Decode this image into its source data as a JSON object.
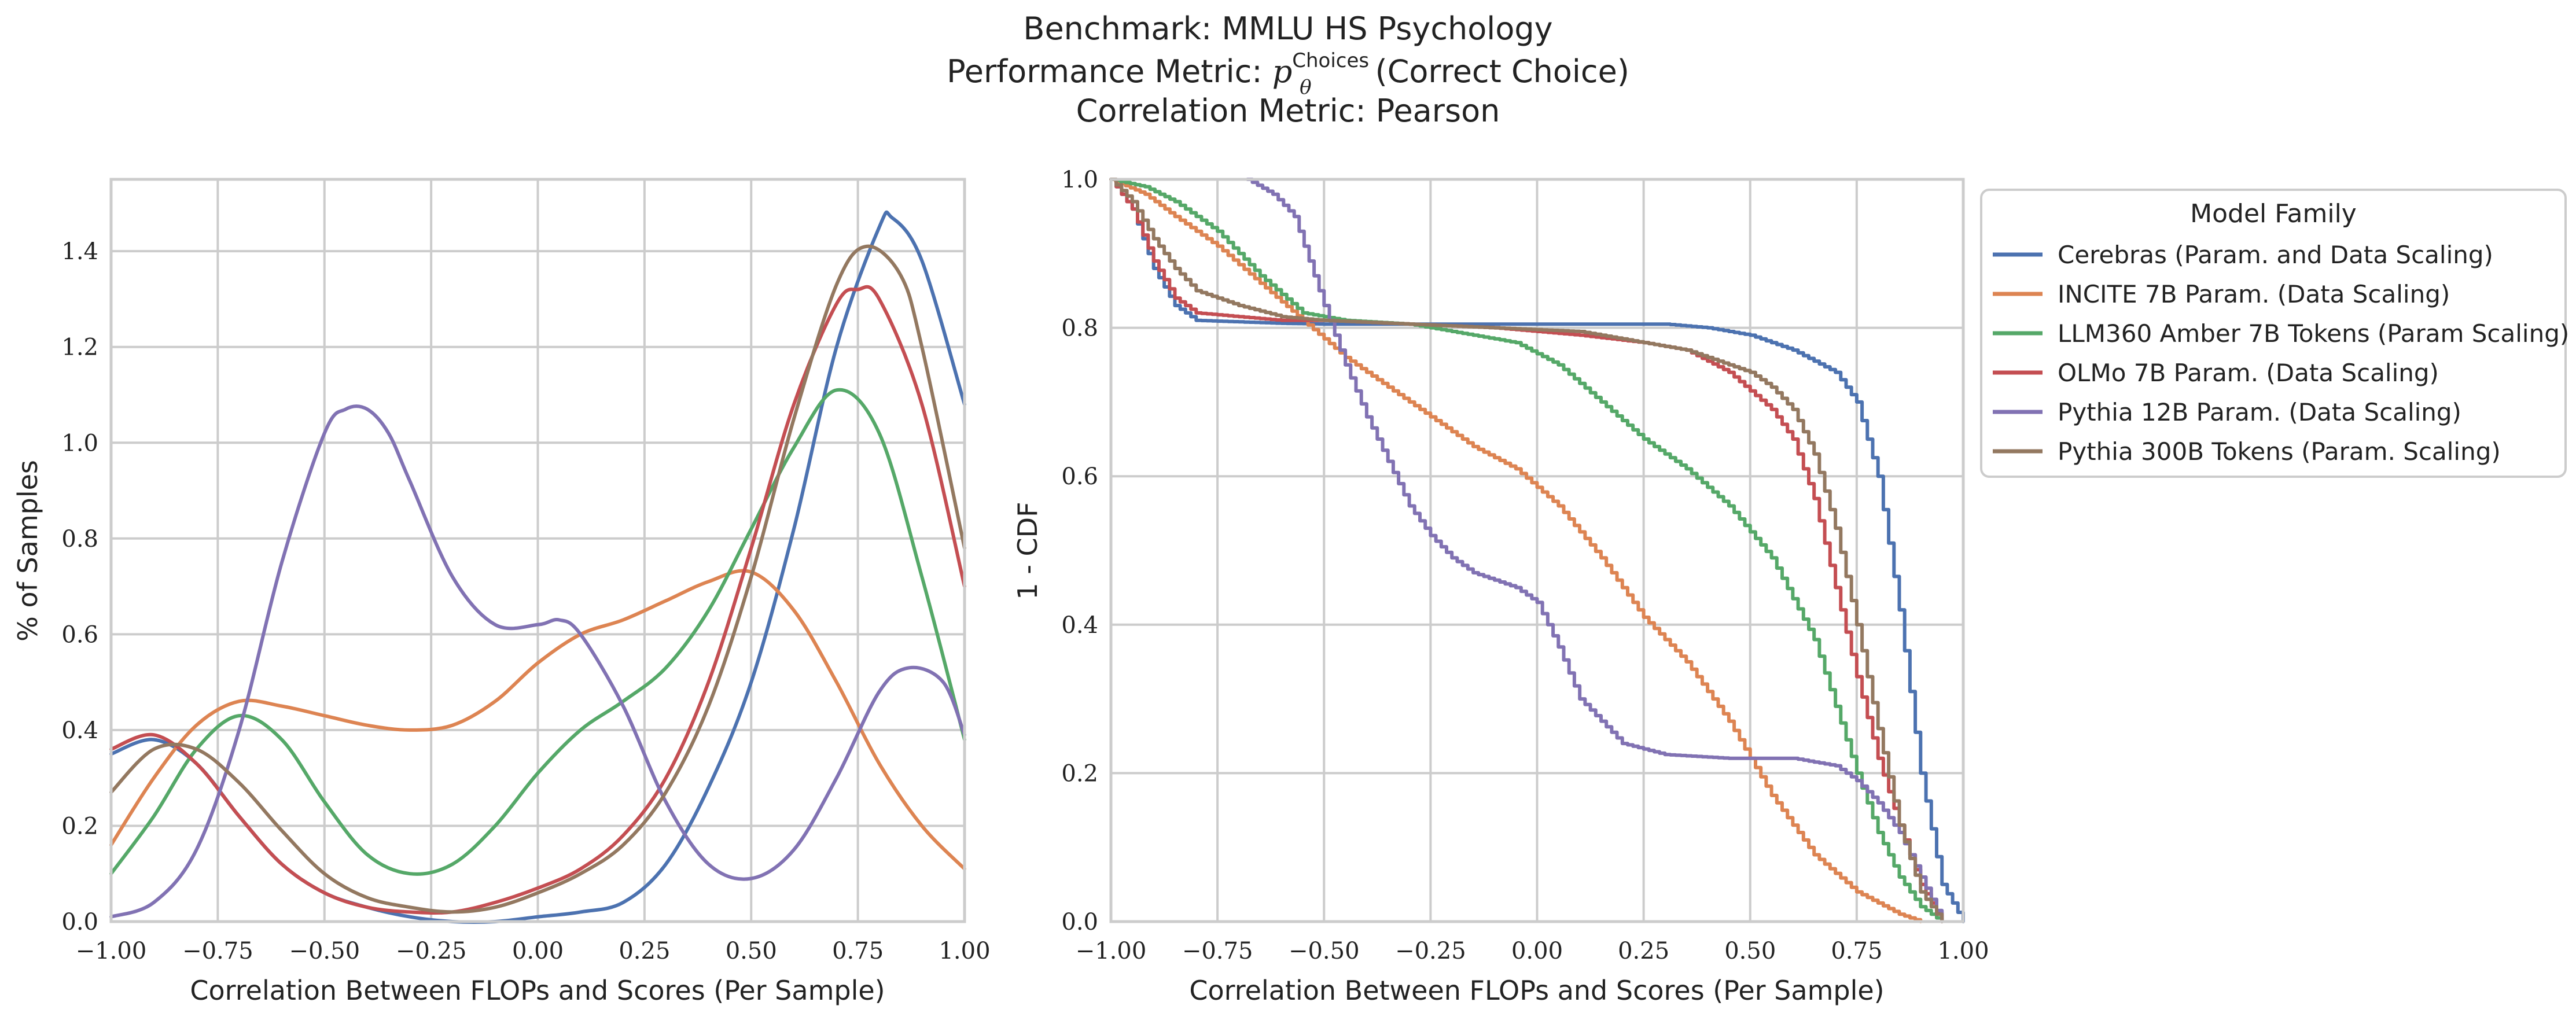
{
  "title": {
    "line1": "Benchmark: MMLU HS Psychology",
    "line2_prefix": "Performance Metric: ",
    "line2_symbol": "p",
    "line2_sup": "Choices",
    "line2_sub": "θ",
    "line2_suffix": "(Correct Choice)",
    "line3": "Correlation Metric: Pearson"
  },
  "colors": {
    "Cerebras": "#4C72B0",
    "INCITE": "#DD8452",
    "LLM360": "#55A868",
    "OLMo": "#C44E52",
    "Pythia12B": "#8172B3",
    "Pythia300B": "#937860"
  },
  "chart_data": [
    {
      "type": "line",
      "id": "kde",
      "xlabel": "Correlation Between FLOPs and Scores (Per Sample)",
      "ylabel": "% of Samples",
      "xlim": [
        -1.0,
        1.0
      ],
      "ylim": [
        0.0,
        1.55
      ],
      "xticks": [
        -1.0,
        -0.75,
        -0.5,
        -0.25,
        0.0,
        0.25,
        0.5,
        0.75,
        1.0
      ],
      "xtick_labels": [
        "−1.00",
        "−0.75",
        "−0.50",
        "−0.25",
        "0.00",
        "0.25",
        "0.50",
        "0.75",
        "1.00"
      ],
      "yticks": [
        0.0,
        0.2,
        0.4,
        0.6,
        0.8,
        1.0,
        1.2,
        1.4
      ],
      "ytick_labels": [
        "0.0",
        "0.2",
        "0.4",
        "0.6",
        "0.8",
        "1.0",
        "1.2",
        "1.4"
      ],
      "grid": true,
      "series": [
        {
          "key": "Cerebras",
          "color": "#4C72B0",
          "x": [
            -1.0,
            -0.9,
            -0.8,
            -0.7,
            -0.6,
            -0.5,
            -0.4,
            -0.3,
            -0.2,
            -0.1,
            0.0,
            0.1,
            0.2,
            0.3,
            0.4,
            0.5,
            0.6,
            0.7,
            0.8,
            0.83,
            0.9,
            1.0
          ],
          "y": [
            0.35,
            0.38,
            0.33,
            0.22,
            0.12,
            0.06,
            0.03,
            0.01,
            0.0,
            0.0,
            0.01,
            0.02,
            0.04,
            0.12,
            0.28,
            0.5,
            0.82,
            1.2,
            1.45,
            1.47,
            1.38,
            1.08
          ]
        },
        {
          "key": "INCITE",
          "color": "#DD8452",
          "x": [
            -1.0,
            -0.9,
            -0.8,
            -0.7,
            -0.6,
            -0.5,
            -0.4,
            -0.3,
            -0.2,
            -0.1,
            0.0,
            0.1,
            0.2,
            0.3,
            0.4,
            0.5,
            0.6,
            0.7,
            0.8,
            0.9,
            1.0
          ],
          "y": [
            0.16,
            0.3,
            0.41,
            0.46,
            0.45,
            0.43,
            0.41,
            0.4,
            0.41,
            0.46,
            0.54,
            0.6,
            0.63,
            0.67,
            0.71,
            0.73,
            0.65,
            0.5,
            0.33,
            0.2,
            0.11
          ]
        },
        {
          "key": "LLM360",
          "color": "#55A868",
          "x": [
            -1.0,
            -0.9,
            -0.8,
            -0.7,
            -0.6,
            -0.5,
            -0.4,
            -0.3,
            -0.2,
            -0.1,
            0.0,
            0.1,
            0.2,
            0.3,
            0.4,
            0.5,
            0.6,
            0.7,
            0.8,
            0.9,
            1.0
          ],
          "y": [
            0.1,
            0.22,
            0.36,
            0.43,
            0.38,
            0.25,
            0.14,
            0.1,
            0.12,
            0.2,
            0.31,
            0.4,
            0.46,
            0.53,
            0.65,
            0.82,
            0.99,
            1.11,
            1.02,
            0.72,
            0.38
          ]
        },
        {
          "key": "OLMo",
          "color": "#C44E52",
          "x": [
            -1.0,
            -0.9,
            -0.8,
            -0.7,
            -0.6,
            -0.5,
            -0.4,
            -0.3,
            -0.2,
            -0.1,
            0.0,
            0.1,
            0.2,
            0.3,
            0.4,
            0.5,
            0.6,
            0.7,
            0.75,
            0.8,
            0.9,
            1.0
          ],
          "y": [
            0.36,
            0.39,
            0.33,
            0.22,
            0.12,
            0.06,
            0.03,
            0.02,
            0.02,
            0.04,
            0.07,
            0.11,
            0.18,
            0.3,
            0.5,
            0.78,
            1.08,
            1.29,
            1.32,
            1.3,
            1.08,
            0.7
          ]
        },
        {
          "key": "Pythia12B",
          "color": "#8172B3",
          "x": [
            -1.0,
            -0.9,
            -0.8,
            -0.7,
            -0.6,
            -0.5,
            -0.45,
            -0.4,
            -0.35,
            -0.3,
            -0.2,
            -0.1,
            0.0,
            0.05,
            0.1,
            0.2,
            0.3,
            0.4,
            0.5,
            0.6,
            0.7,
            0.8,
            0.87,
            0.95,
            1.0
          ],
          "y": [
            0.01,
            0.04,
            0.15,
            0.4,
            0.75,
            1.02,
            1.07,
            1.07,
            1.02,
            0.92,
            0.72,
            0.62,
            0.62,
            0.63,
            0.6,
            0.45,
            0.25,
            0.12,
            0.09,
            0.15,
            0.3,
            0.48,
            0.53,
            0.5,
            0.39
          ]
        },
        {
          "key": "Pythia300B",
          "color": "#937860",
          "x": [
            -1.0,
            -0.9,
            -0.8,
            -0.7,
            -0.6,
            -0.5,
            -0.4,
            -0.3,
            -0.2,
            -0.1,
            0.0,
            0.1,
            0.2,
            0.3,
            0.4,
            0.5,
            0.6,
            0.7,
            0.77,
            0.85,
            0.9,
            1.0
          ],
          "y": [
            0.27,
            0.36,
            0.36,
            0.29,
            0.19,
            0.1,
            0.05,
            0.03,
            0.02,
            0.03,
            0.06,
            0.1,
            0.16,
            0.27,
            0.45,
            0.72,
            1.05,
            1.33,
            1.41,
            1.35,
            1.2,
            0.78
          ]
        }
      ]
    },
    {
      "type": "line",
      "id": "cdf",
      "xlabel": "Correlation Between FLOPs and Scores (Per Sample)",
      "ylabel": "1 - CDF",
      "xlim": [
        -1.0,
        1.0
      ],
      "ylim": [
        0.0,
        1.0
      ],
      "xticks": [
        -1.0,
        -0.75,
        -0.5,
        -0.25,
        0.0,
        0.25,
        0.5,
        0.75,
        1.0
      ],
      "xtick_labels": [
        "−1.00",
        "−0.75",
        "−0.50",
        "−0.25",
        "0.00",
        "0.25",
        "0.50",
        "0.75",
        "1.00"
      ],
      "yticks": [
        0.0,
        0.2,
        0.4,
        0.6,
        0.8,
        1.0
      ],
      "ytick_labels": [
        "0.0",
        "0.2",
        "0.4",
        "0.6",
        "0.8",
        "1.0"
      ],
      "grid": true,
      "legend_position": "outside-right",
      "series": [
        {
          "key": "Cerebras",
          "color": "#4C72B0",
          "x": [
            -1.0,
            -0.95,
            -0.9,
            -0.85,
            -0.8,
            -0.7,
            -0.6,
            -0.5,
            -0.3,
            0.0,
            0.2,
            0.3,
            0.4,
            0.5,
            0.6,
            0.7,
            0.75,
            0.8,
            0.85,
            0.9,
            0.95,
            1.0
          ],
          "y": [
            1.0,
            0.96,
            0.88,
            0.83,
            0.81,
            0.808,
            0.806,
            0.805,
            0.805,
            0.805,
            0.805,
            0.805,
            0.8,
            0.79,
            0.77,
            0.74,
            0.7,
            0.6,
            0.42,
            0.2,
            0.05,
            0.0
          ]
        },
        {
          "key": "INCITE",
          "color": "#DD8452",
          "x": [
            -1.0,
            -0.92,
            -0.85,
            -0.75,
            -0.65,
            -0.55,
            -0.45,
            -0.35,
            -0.25,
            -0.15,
            -0.05,
            0.05,
            0.15,
            0.25,
            0.35,
            0.45,
            0.55,
            0.65,
            0.75,
            0.85,
            0.9
          ],
          "y": [
            1.0,
            0.98,
            0.95,
            0.91,
            0.86,
            0.81,
            0.76,
            0.72,
            0.68,
            0.64,
            0.61,
            0.56,
            0.49,
            0.41,
            0.35,
            0.27,
            0.17,
            0.09,
            0.04,
            0.01,
            0.0
          ]
        },
        {
          "key": "LLM360",
          "color": "#55A868",
          "x": [
            -1.0,
            -0.92,
            -0.85,
            -0.75,
            -0.65,
            -0.55,
            -0.45,
            -0.3,
            -0.15,
            -0.05,
            0.05,
            0.15,
            0.25,
            0.35,
            0.45,
            0.55,
            0.65,
            0.75,
            0.8,
            0.85,
            0.9,
            0.95
          ],
          "y": [
            1.0,
            0.99,
            0.97,
            0.93,
            0.87,
            0.82,
            0.81,
            0.805,
            0.79,
            0.78,
            0.75,
            0.7,
            0.65,
            0.61,
            0.56,
            0.49,
            0.38,
            0.2,
            0.12,
            0.06,
            0.02,
            0.0
          ]
        },
        {
          "key": "OLMo",
          "color": "#C44E52",
          "x": [
            -1.0,
            -0.95,
            -0.9,
            -0.85,
            -0.8,
            -0.7,
            -0.6,
            -0.5,
            -0.3,
            -0.1,
            0.1,
            0.25,
            0.35,
            0.45,
            0.55,
            0.6,
            0.65,
            0.7,
            0.75,
            0.8,
            0.85,
            0.9,
            0.95
          ],
          "y": [
            1.0,
            0.96,
            0.89,
            0.84,
            0.82,
            0.815,
            0.81,
            0.81,
            0.805,
            0.8,
            0.79,
            0.78,
            0.77,
            0.74,
            0.69,
            0.65,
            0.57,
            0.45,
            0.33,
            0.22,
            0.13,
            0.05,
            0.0
          ]
        },
        {
          "key": "Pythia12B",
          "color": "#8172B3",
          "x": [
            -0.68,
            -0.62,
            -0.57,
            -0.5,
            -0.45,
            -0.4,
            -0.35,
            -0.3,
            -0.25,
            -0.2,
            -0.15,
            -0.05,
            0.0,
            0.05,
            0.1,
            0.15,
            0.2,
            0.3,
            0.45,
            0.6,
            0.7,
            0.75,
            0.8,
            0.85,
            0.9,
            0.95
          ],
          "y": [
            1.0,
            0.98,
            0.95,
            0.83,
            0.75,
            0.68,
            0.62,
            0.56,
            0.52,
            0.49,
            0.47,
            0.45,
            0.43,
            0.37,
            0.3,
            0.27,
            0.24,
            0.225,
            0.22,
            0.22,
            0.21,
            0.19,
            0.16,
            0.12,
            0.06,
            0.0
          ]
        },
        {
          "key": "Pythia300B",
          "color": "#937860",
          "x": [
            -1.0,
            -0.95,
            -0.9,
            -0.85,
            -0.8,
            -0.7,
            -0.6,
            -0.5,
            -0.3,
            -0.1,
            0.1,
            0.25,
            0.35,
            0.45,
            0.5,
            0.55,
            0.6,
            0.65,
            0.7,
            0.75,
            0.8,
            0.85,
            0.9,
            0.95
          ],
          "y": [
            1.0,
            0.97,
            0.92,
            0.88,
            0.85,
            0.83,
            0.815,
            0.81,
            0.805,
            0.8,
            0.795,
            0.78,
            0.77,
            0.75,
            0.74,
            0.72,
            0.69,
            0.63,
            0.53,
            0.4,
            0.26,
            0.13,
            0.04,
            0.0
          ]
        }
      ]
    }
  ],
  "legend": {
    "title": "Model Family",
    "entries": [
      {
        "key": "Cerebras",
        "label": "Cerebras (Param. and Data Scaling)"
      },
      {
        "key": "INCITE",
        "label": "INCITE 7B Param. (Data Scaling)"
      },
      {
        "key": "LLM360",
        "label": "LLM360 Amber 7B Tokens (Param Scaling)"
      },
      {
        "key": "OLMo",
        "label": "OLMo 7B Param. (Data Scaling)"
      },
      {
        "key": "Pythia12B",
        "label": "Pythia 12B Param. (Data Scaling)"
      },
      {
        "key": "Pythia300B",
        "label": "Pythia 300B Tokens (Param. Scaling)"
      }
    ]
  }
}
